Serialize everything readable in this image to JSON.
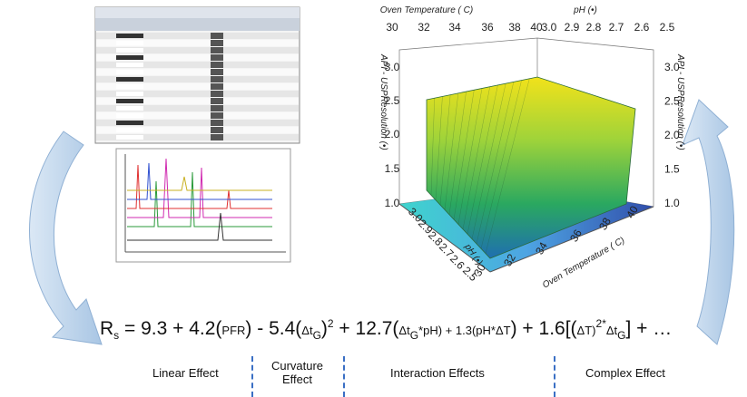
{
  "surface_plot": {
    "top_temp_title": "Oven Temperature ( C)",
    "top_ph_title": "pH (•)",
    "top_temp_ticks": [
      "30",
      "32",
      "34",
      "36",
      "38",
      "40"
    ],
    "top_ph_ticks": [
      "3.0",
      "2.9",
      "2.8",
      "2.7",
      "2.6",
      "2.5"
    ],
    "z_title_left": "API - USPResolution (•)",
    "z_title_right": "API - USPResolution (•)",
    "z_ticks": [
      "3.0",
      "2.5",
      "2.0",
      "1.5",
      "1.0"
    ],
    "bottom_ph_ticks": [
      "3.0",
      "2.9",
      "2.8",
      "2.7",
      "2.6",
      "2.5"
    ],
    "bottom_ph_title": "pH (•)",
    "bottom_temp_ticks": [
      "30",
      "32",
      "34",
      "36",
      "38",
      "40"
    ],
    "bottom_temp_title": "Oven Temperature ( C)"
  },
  "equation": {
    "parts": [
      "R",
      "s",
      " = 9.3 + 4.2(",
      "PFR",
      ") - 5.4(",
      "Δt",
      "G",
      ")",
      "2",
      " + 12.7(",
      "Δt",
      "G",
      "*pH) + 1.3(",
      "pH*ΔT",
      ") + 1.6[(",
      "ΔT)",
      "2*",
      "Δt",
      "G",
      "] + …"
    ]
  },
  "effects": [
    "Linear Effect",
    "Curvature Effect",
    "Interaction Effects",
    "Complex Effect"
  ]
}
